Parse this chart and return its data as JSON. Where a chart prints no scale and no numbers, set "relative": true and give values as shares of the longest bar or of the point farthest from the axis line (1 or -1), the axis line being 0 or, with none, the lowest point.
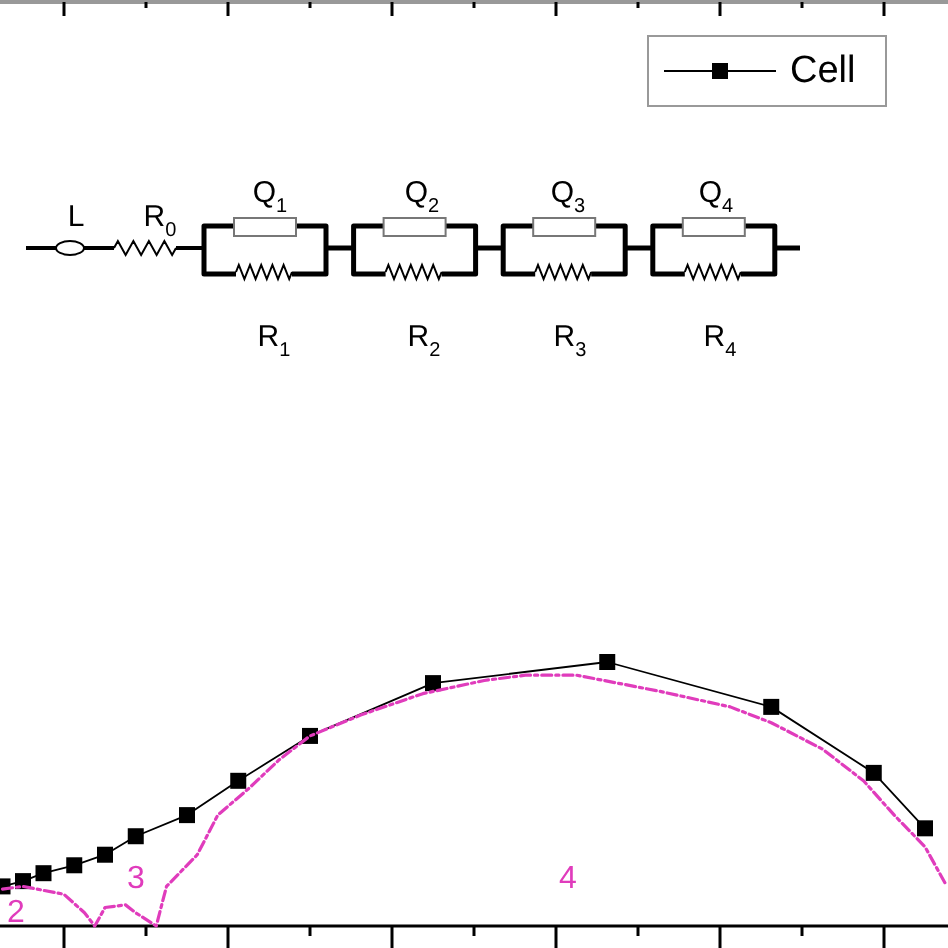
{
  "chart_data": {
    "type": "line",
    "relative": true,
    "legend": "top right",
    "marker": "square",
    "categories": [
      null,
      null,
      null,
      null,
      null,
      null,
      null,
      null,
      null,
      null,
      null,
      null,
      null,
      null,
      null,
      null,
      null,
      null,
      null,
      null,
      null,
      null,
      null,
      null,
      null,
      null,
      null,
      null,
      null,
      null,
      null,
      null,
      null,
      null,
      null,
      null,
      null,
      null,
      null,
      null,
      null,
      null,
      null,
      null,
      null,
      null,
      null,
      null,
      null,
      null,
      null,
      null,
      null,
      null,
      null,
      null,
      null,
      null,
      null,
      null,
      null,
      null,
      null,
      null,
      null,
      null,
      null,
      null,
      null,
      null,
      null,
      null,
      null,
      null,
      null,
      null,
      null,
      null,
      null,
      null,
      null,
      null,
      null,
      null,
      null,
      null,
      null,
      null,
      null,
      null,
      null,
      null,
      null
    ],
    "series": [
      {
        "name": "Cell",
        "color": "#000000",
        "values": [
          0.15,
          null,
          0.17,
          null,
          0.2,
          null,
          null,
          0.23,
          null,
          null,
          0.27,
          null,
          null,
          0.34,
          null,
          null,
          null,
          null,
          0.42,
          null,
          null,
          null,
          null,
          0.55,
          null,
          null,
          null,
          null,
          null,
          null,
          0.72,
          null,
          null,
          null,
          null,
          null,
          null,
          null,
          null,
          null,
          null,
          null,
          0.92,
          null,
          null,
          null,
          null,
          null,
          null,
          null,
          null,
          null,
          null,
          null,
          null,
          null,
          null,
          null,
          null,
          1,
          null,
          null,
          null,
          null,
          null,
          null,
          null,
          null,
          null,
          null,
          null,
          null,
          null,
          null,
          null,
          0.83,
          null,
          null,
          null,
          null,
          null,
          null,
          null,
          null,
          null,
          0.58,
          null,
          null,
          null,
          null,
          0.37,
          null,
          null
        ]
      },
      {
        "color": "#e03cbc",
        "marker": "none",
        "line_style": "dashed",
        "values": [
          0.14,
          null,
          0.15,
          null,
          null,
          null,
          0.12,
          null,
          0.05,
          0,
          0.07,
          null,
          0.08,
          0.05,
          null,
          0,
          0.15,
          null,
          null,
          0.27,
          null,
          0.42,
          null,
          null,
          0.52,
          null,
          null,
          0.63,
          null,
          null,
          0.72,
          null,
          null,
          null,
          null,
          0.8,
          null,
          null,
          null,
          null,
          null,
          0.88,
          null,
          null,
          null,
          null,
          null,
          0.93,
          null,
          null,
          null,
          0.95,
          null,
          null,
          null,
          null,
          0.95,
          null,
          null,
          null,
          0.92,
          null,
          null,
          null,
          0.89,
          null,
          null,
          null,
          null,
          null,
          null,
          0.83,
          null,
          null,
          null,
          0.77,
          null,
          null,
          null,
          null,
          0.67,
          null,
          null,
          null,
          0.55,
          null,
          null,
          0.42,
          null,
          null,
          0.3,
          null,
          0.16
        ]
      }
    ],
    "annotations": [
      "2",
      "3",
      "4",
      "L",
      "R$_{0}$",
      "Q$_{1}$",
      "R$_{1}$",
      "Q$_{2}$",
      "R$_{2}$",
      "Q$_{3}$",
      "R$_{3}$",
      "Q$_{4}$",
      "R$_{4}$"
    ]
  }
}
